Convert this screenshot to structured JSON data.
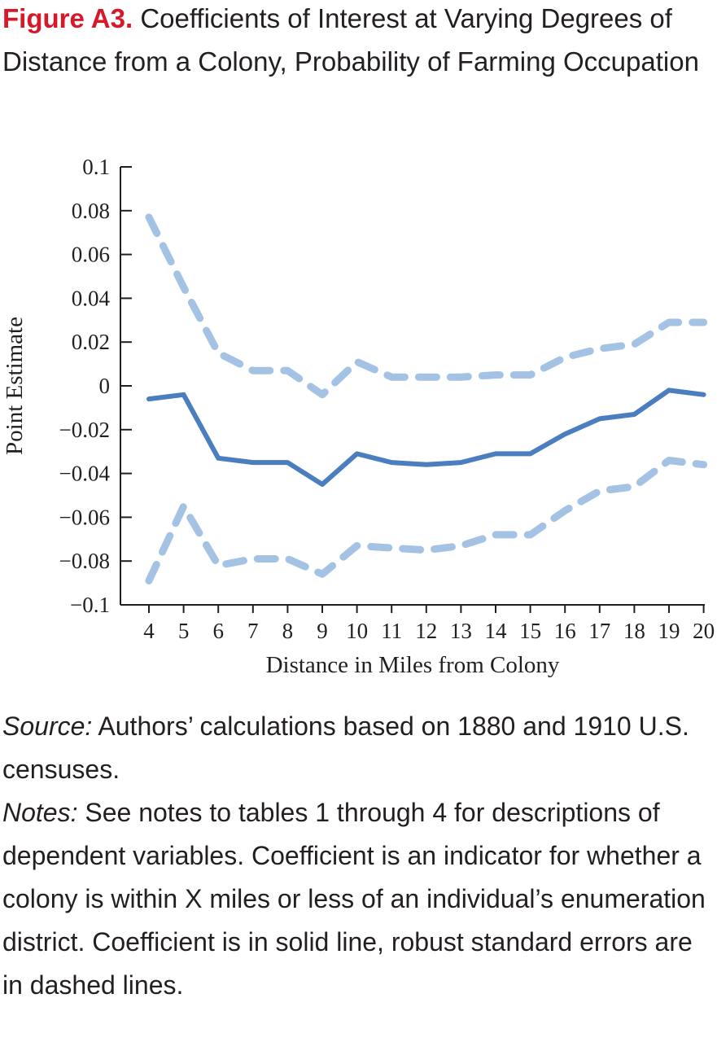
{
  "figure": {
    "label": "Figure A3.",
    "title": "Coefficients of Interest at Varying Degrees of Distance from a Colony, Probability of Farming Occupation"
  },
  "chart_data": {
    "type": "line",
    "x": [
      4,
      5,
      6,
      7,
      8,
      9,
      10,
      11,
      12,
      13,
      14,
      15,
      16,
      17,
      18,
      19,
      20
    ],
    "series": [
      {
        "style": "solid",
        "color": "#4a7ebf",
        "values": [
          -0.006,
          -0.004,
          -0.033,
          -0.035,
          -0.035,
          -0.045,
          -0.031,
          -0.035,
          -0.036,
          -0.035,
          -0.031,
          -0.031,
          -0.022,
          -0.015,
          -0.013,
          -0.002,
          -0.004
        ]
      },
      {
        "style": "dashed",
        "color": "#a4c2e3",
        "values": [
          0.077,
          0.045,
          0.015,
          0.007,
          0.007,
          -0.004,
          0.011,
          0.004,
          0.004,
          0.004,
          0.005,
          0.005,
          0.013,
          0.017,
          0.019,
          0.029,
          0.029
        ]
      },
      {
        "style": "dashed",
        "color": "#a4c2e3",
        "values": [
          -0.089,
          -0.055,
          -0.082,
          -0.079,
          -0.079,
          -0.086,
          -0.073,
          -0.074,
          -0.075,
          -0.073,
          -0.068,
          -0.068,
          -0.057,
          -0.048,
          -0.046,
          -0.034,
          -0.036
        ]
      }
    ],
    "xlabel": "Distance in Miles from Colony",
    "ylabel": "Point Estimate",
    "ylim": [
      -0.1,
      0.1
    ],
    "yticks": [
      0.1,
      0.08,
      0.06,
      0.04,
      0.02,
      0,
      -0.02,
      -0.04,
      -0.06,
      -0.08,
      -0.1
    ],
    "ytick_labels": [
      "0.1",
      "0.08",
      "0.06",
      "0.04",
      "0.02",
      "0",
      "−0.02",
      "−0.04",
      "−0.06",
      "−0.08",
      "−0.1"
    ],
    "xtick_labels": [
      "4",
      "5",
      "6",
      "7",
      "8",
      "9",
      "10",
      "11",
      "12",
      "13",
      "14",
      "15",
      "16",
      "17",
      "18",
      "19",
      "20"
    ],
    "grid": false,
    "legend": "none"
  },
  "source": {
    "label": "Source:",
    "text": "Authors’ calculations based on 1880 and 1910 U.S. censuses."
  },
  "notes": {
    "label": "Notes:",
    "text": "See notes to tables 1 through 4 for descrip­tions of dependent variables. Coefficient is an indi­cator for whether a colony is within X miles or less of an individual’s enumeration district. Coefficient is in solid line, robust standard errors are in dashed lines."
  }
}
